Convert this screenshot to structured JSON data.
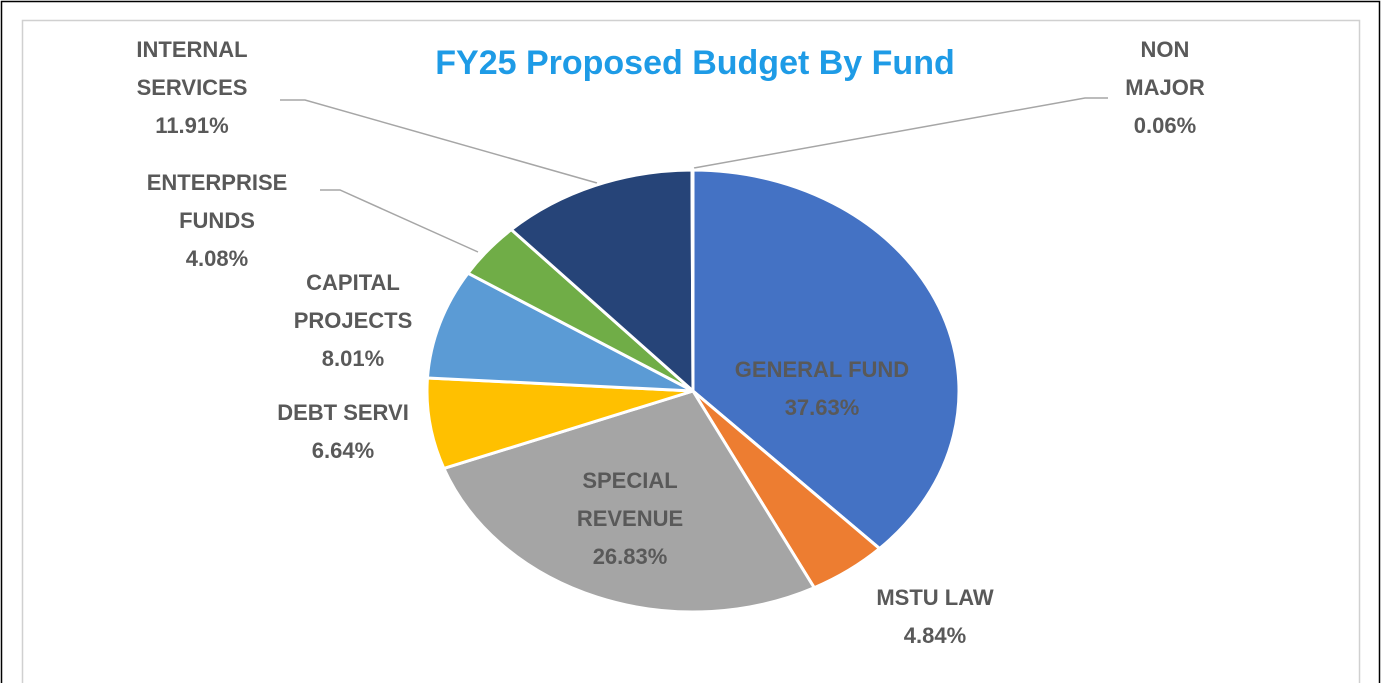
{
  "chart_data": {
    "type": "pie",
    "title": "FY25 Proposed Budget By Fund",
    "categories": [
      "GENERAL FUND",
      "MSTU LAW",
      "SPECIAL REVENUE",
      "DEBT SERVI",
      "CAPITAL PROJECTS",
      "ENTERPRISE FUNDS",
      "INTERNAL SERVICES",
      "NON MAJOR"
    ],
    "values": [
      37.63,
      4.84,
      26.83,
      6.64,
      8.01,
      4.08,
      11.91,
      0.06
    ],
    "value_labels": [
      "37.63%",
      "4.84%",
      "26.83%",
      "6.64%",
      "8.01%",
      "4.08%",
      "11.91%",
      "0.06%"
    ],
    "colors": [
      "#4472c4",
      "#ed7d31",
      "#a5a5a5",
      "#ffc000",
      "#5b9bd5",
      "#70ad47",
      "#264478",
      "#9e480e"
    ]
  }
}
